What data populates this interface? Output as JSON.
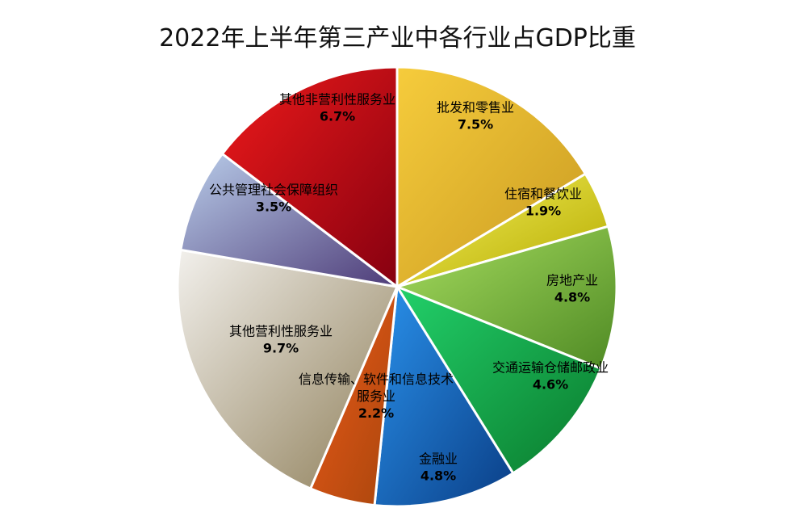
{
  "chart_data": {
    "type": "pie",
    "title": "2022年上半年第三产业中各行业占GDP比重",
    "categories": [
      "批发和零售业",
      "住宿和餐饮业",
      "房地产业",
      "交通运输仓储邮政业",
      "金融业",
      "信息传输、软件和信息技术服务业",
      "其他营利性服务业",
      "公共管理社会保障组织",
      "其他非营利性服务业"
    ],
    "values": [
      7.5,
      1.9,
      4.8,
      4.6,
      4.8,
      2.2,
      9.7,
      3.5,
      6.7
    ],
    "value_labels": [
      "7.5%",
      "1.9%",
      "4.8%",
      "4.6%",
      "4.8%",
      "2.2%",
      "9.7%",
      "3.5%",
      "6.7%"
    ],
    "colors": [
      [
        "#f6cc3c",
        "#c99a21"
      ],
      [
        "#f4f05a",
        "#b5aa00"
      ],
      [
        "#a8de60",
        "#4f8a24"
      ],
      [
        "#22d06a",
        "#0a7a2c"
      ],
      [
        "#2a92ec",
        "#0a3e86"
      ],
      [
        "#ee5a1a",
        "#a8460c"
      ],
      [
        "#f2f0ec",
        "#8e7e58"
      ],
      [
        "#b9cdea",
        "#4e3c78"
      ],
      [
        "#ee1a1a",
        "#860010"
      ]
    ]
  }
}
